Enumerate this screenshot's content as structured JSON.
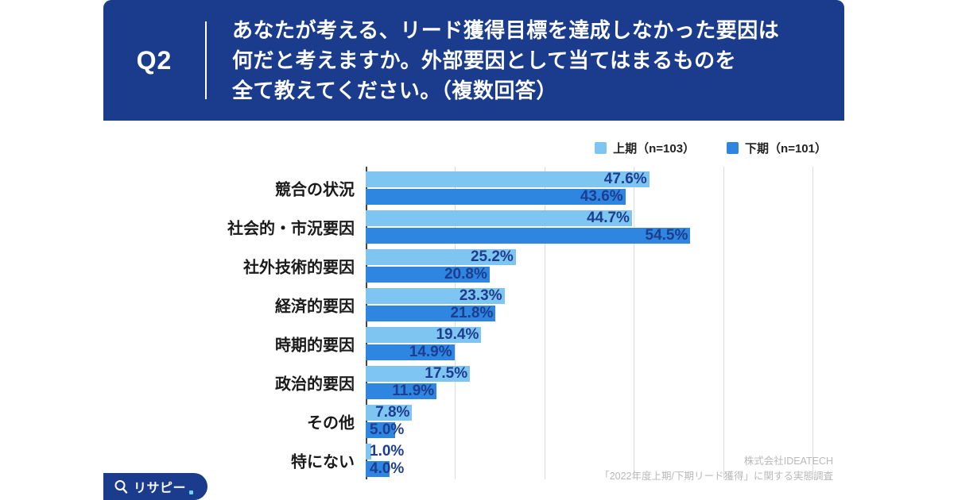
{
  "header": {
    "q_label": "Q2",
    "question_lines": [
      "あなたが考える、リード獲得目標を達成しなかった要因は",
      "何だと考えますか。外部要因として当てはまるものを",
      "全て教えてください。（複数回答）"
    ]
  },
  "chart_data": {
    "type": "bar",
    "orientation": "horizontal",
    "categories": [
      "競合の状況",
      "社会的・市況要因",
      "社外技術的要因",
      "経済的要因",
      "時期的要因",
      "政治的要因",
      "その他",
      "特にない"
    ],
    "series": [
      {
        "name": "上期（n=103）",
        "color": "#7EC5F1",
        "values": [
          47.6,
          44.7,
          25.2,
          23.3,
          19.4,
          17.5,
          7.8,
          1.0
        ]
      },
      {
        "name": "下期（n=101）",
        "color": "#2E86E0",
        "values": [
          43.6,
          54.5,
          20.8,
          21.8,
          14.9,
          11.9,
          5.0,
          4.0
        ]
      }
    ],
    "xlim": [
      0,
      75
    ],
    "gridline_interval": 15,
    "value_suffix": "%",
    "grid": "on",
    "legend_position": "top-right"
  },
  "colors": {
    "navy": "#1B3C8D",
    "series1": "#7EC5F1",
    "series2": "#2E86E0",
    "value_label": "#1D3D8F",
    "grid": "#DCDCDC",
    "axis": "#444444",
    "footer_gray": "#B9B9B9"
  },
  "footer": {
    "company": "株式会社IDEATECH",
    "survey": "「2022年度上期/下期リード獲得」に関する実態調査"
  },
  "logo": {
    "text": "リサピー"
  }
}
